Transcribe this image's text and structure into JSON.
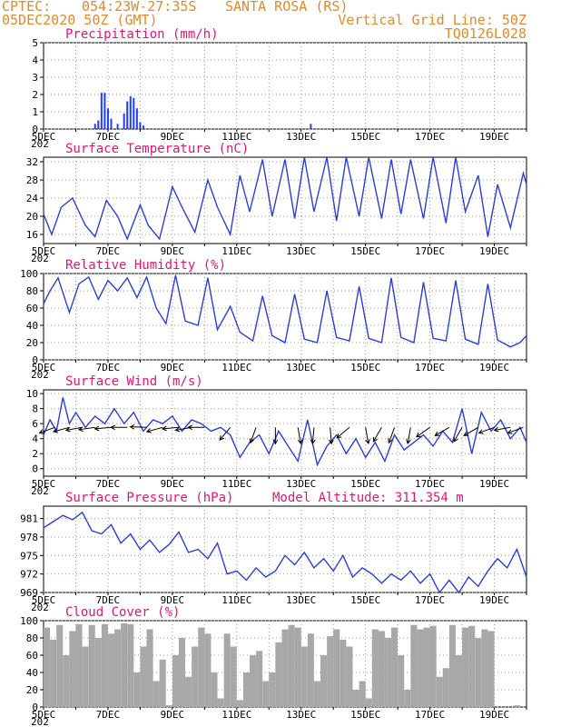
{
  "header": {
    "source": "CPTEC:",
    "coords": "054:23W-27:35S",
    "location": "SANTA ROSA (RS)",
    "init_time": "05DEC2020 50Z (GMT)",
    "grid_note": "Vertical Grid Line: 50Z",
    "run_id": "TQ0126L028"
  },
  "x_tick_labels": [
    "5DEC",
    "7DEC",
    "9DEC",
    "11DEC",
    "13DEC",
    "15DEC",
    "17DEC",
    "19DEC"
  ],
  "x_under_label": "202",
  "colors": {
    "line": "#2b3fd8",
    "bar": "#1f3cff",
    "cloud": "#a8a8a8",
    "title": "#e0157a",
    "header": "#e08a2a"
  },
  "chart_data": [
    {
      "type": "bar",
      "title": "Precipitation (mm/h)",
      "ylim": [
        0,
        5
      ],
      "yticks": [
        "0",
        "1",
        "2",
        "3",
        "4",
        "5"
      ],
      "x_range_days": [
        5,
        20
      ],
      "series": [
        {
          "x": [
            6.6,
            6.7,
            6.8,
            6.9,
            7.0,
            7.1,
            7.3,
            7.5,
            7.6,
            7.7,
            7.8,
            7.9,
            8.0,
            8.1,
            13.3
          ],
          "values": [
            0.3,
            0.5,
            2.1,
            2.1,
            1.2,
            0.6,
            0.3,
            0.9,
            1.6,
            1.9,
            1.8,
            1.2,
            0.4,
            0.2,
            0.3
          ]
        }
      ]
    },
    {
      "type": "line",
      "title": "Surface Temperature (nC)",
      "ylim": [
        14,
        33
      ],
      "yticks": [
        "16",
        "20",
        "24",
        "28",
        "32"
      ],
      "series": [
        {
          "x": [
            5.0,
            5.25,
            5.55,
            5.9,
            6.3,
            6.6,
            6.95,
            7.3,
            7.6,
            8.0,
            8.25,
            8.6,
            9.0,
            9.3,
            9.7,
            10.1,
            10.4,
            10.8,
            11.1,
            11.4,
            11.8,
            12.1,
            12.5,
            12.8,
            13.1,
            13.4,
            13.8,
            14.1,
            14.4,
            14.8,
            15.1,
            15.5,
            15.8,
            16.1,
            16.4,
            16.8,
            17.1,
            17.5,
            17.8,
            18.1,
            18.5,
            18.8,
            19.1,
            19.5,
            19.9,
            20.0
          ],
          "values": [
            20.5,
            16.0,
            22.0,
            24.0,
            18.0,
            15.5,
            23.5,
            20.0,
            15.0,
            22.5,
            18.0,
            15.0,
            26.5,
            22.0,
            16.5,
            28.0,
            22.0,
            16.0,
            29.0,
            21.0,
            32.5,
            20.0,
            32.5,
            19.5,
            33.0,
            21.0,
            33.0,
            19.0,
            33.0,
            20.0,
            33.0,
            19.5,
            32.5,
            20.5,
            32.5,
            19.5,
            33.0,
            18.5,
            33.0,
            21.0,
            29.0,
            15.5,
            27.0,
            17.5,
            29.5,
            27.0
          ]
        }
      ]
    },
    {
      "type": "line",
      "title": "Relative Humidity (%)",
      "ylim": [
        0,
        100
      ],
      "yticks": [
        "0",
        "20",
        "40",
        "60",
        "80",
        "100"
      ],
      "series": [
        {
          "x": [
            5.0,
            5.2,
            5.45,
            5.8,
            6.1,
            6.4,
            6.7,
            7.0,
            7.3,
            7.6,
            7.9,
            8.2,
            8.5,
            8.8,
            9.1,
            9.4,
            9.8,
            10.1,
            10.4,
            10.8,
            11.1,
            11.5,
            11.8,
            12.1,
            12.5,
            12.8,
            13.1,
            13.5,
            13.8,
            14.1,
            14.5,
            14.8,
            15.1,
            15.5,
            15.8,
            16.1,
            16.5,
            16.8,
            17.1,
            17.5,
            17.8,
            18.1,
            18.5,
            18.8,
            19.1,
            19.5,
            19.8,
            20.0
          ],
          "values": [
            65,
            80,
            95,
            55,
            88,
            96,
            70,
            92,
            80,
            95,
            72,
            96,
            60,
            42,
            98,
            45,
            40,
            95,
            35,
            62,
            32,
            22,
            74,
            28,
            20,
            76,
            24,
            20,
            80,
            26,
            22,
            85,
            25,
            20,
            95,
            26,
            20,
            90,
            25,
            22,
            92,
            24,
            18,
            88,
            23,
            15,
            20,
            28
          ]
        }
      ]
    },
    {
      "type": "line",
      "title": "Surface Wind (m/s)",
      "ylim": [
        -1,
        10.5
      ],
      "yticks": [
        "0",
        "2",
        "4",
        "6",
        "8",
        "10"
      ],
      "series": [
        {
          "x": [
            5.0,
            5.2,
            5.4,
            5.6,
            5.8,
            6.0,
            6.3,
            6.6,
            6.9,
            7.2,
            7.5,
            7.8,
            8.1,
            8.4,
            8.7,
            9.0,
            9.3,
            9.6,
            9.9,
            10.2,
            10.5,
            10.8,
            11.1,
            11.4,
            11.7,
            12.0,
            12.3,
            12.6,
            12.9,
            13.2,
            13.5,
            13.8,
            14.1,
            14.4,
            14.7,
            15.0,
            15.3,
            15.6,
            15.9,
            16.2,
            16.5,
            16.8,
            17.1,
            17.4,
            17.7,
            18.0,
            18.3,
            18.6,
            18.9,
            19.2,
            19.5,
            19.8,
            20.0
          ],
          "values": [
            4.5,
            6.5,
            5.0,
            9.5,
            6.0,
            7.5,
            5.5,
            7.0,
            6.0,
            8.0,
            6.0,
            7.5,
            5.0,
            6.5,
            6.0,
            7.0,
            5.0,
            6.5,
            6.0,
            5.0,
            5.5,
            4.5,
            1.5,
            3.5,
            4.5,
            2.0,
            5.0,
            3.0,
            1.0,
            6.5,
            0.5,
            3.0,
            4.5,
            2.0,
            4.0,
            1.5,
            3.5,
            1.0,
            4.5,
            2.5,
            3.5,
            4.5,
            3.0,
            5.0,
            3.5,
            8.0,
            2.0,
            7.5,
            5.0,
            6.5,
            4.0,
            5.5,
            3.5
          ]
        }
      ],
      "wind_arrows": [
        {
          "day": 5.35,
          "angle": 200
        },
        {
          "day": 5.8,
          "angle": 195
        },
        {
          "day": 6.2,
          "angle": 190
        },
        {
          "day": 6.6,
          "angle": 188
        },
        {
          "day": 7.1,
          "angle": 185
        },
        {
          "day": 7.6,
          "angle": 180
        },
        {
          "day": 8.2,
          "angle": 178
        },
        {
          "day": 8.7,
          "angle": 195
        },
        {
          "day": 9.2,
          "angle": 185
        },
        {
          "day": 9.6,
          "angle": 190
        },
        {
          "day": 10.0,
          "angle": 180
        },
        {
          "day": 10.8,
          "angle": 230
        },
        {
          "day": 11.6,
          "angle": 250
        },
        {
          "day": 12.2,
          "angle": 270
        },
        {
          "day": 12.9,
          "angle": 280
        },
        {
          "day": 13.4,
          "angle": 265
        },
        {
          "day": 13.9,
          "angle": 275
        },
        {
          "day": 14.5,
          "angle": 220
        },
        {
          "day": 15.0,
          "angle": 280
        },
        {
          "day": 15.5,
          "angle": 240
        },
        {
          "day": 15.9,
          "angle": 250
        },
        {
          "day": 16.4,
          "angle": 260
        },
        {
          "day": 17.0,
          "angle": 215
        },
        {
          "day": 17.6,
          "angle": 210
        },
        {
          "day": 18.0,
          "angle": 240
        },
        {
          "day": 18.5,
          "angle": 210
        },
        {
          "day": 19.0,
          "angle": 200
        },
        {
          "day": 19.5,
          "angle": 190
        },
        {
          "day": 19.9,
          "angle": 200
        }
      ]
    },
    {
      "type": "line",
      "title": "Surface Pressure (hPa)",
      "annotation": "Model Altitude: 311.354 m",
      "ylim": [
        969,
        983
      ],
      "yticks": [
        "969",
        "972",
        "975",
        "978",
        "981"
      ],
      "series": [
        {
          "x": [
            5.0,
            5.3,
            5.6,
            5.9,
            6.2,
            6.5,
            6.8,
            7.1,
            7.4,
            7.7,
            8.0,
            8.3,
            8.6,
            8.9,
            9.2,
            9.5,
            9.8,
            10.1,
            10.4,
            10.7,
            11.0,
            11.3,
            11.6,
            11.9,
            12.2,
            12.5,
            12.8,
            13.1,
            13.4,
            13.7,
            14.0,
            14.3,
            14.6,
            14.9,
            15.2,
            15.5,
            15.8,
            16.1,
            16.4,
            16.7,
            17.0,
            17.3,
            17.6,
            17.9,
            18.2,
            18.5,
            18.8,
            19.1,
            19.4,
            19.7,
            20.0
          ],
          "values": [
            979.5,
            980.5,
            981.5,
            980.8,
            982.0,
            979.0,
            978.5,
            980.0,
            977.0,
            978.5,
            976.0,
            977.5,
            975.5,
            976.8,
            978.8,
            975.5,
            976.0,
            974.5,
            977.0,
            972.0,
            972.5,
            971.0,
            973.0,
            971.5,
            972.5,
            975.0,
            973.5,
            975.5,
            973.0,
            974.5,
            972.5,
            975.0,
            971.5,
            973.0,
            972.0,
            970.5,
            972.0,
            971.0,
            972.5,
            970.5,
            972.0,
            968.5,
            971.0,
            969.0,
            971.5,
            970.0,
            972.5,
            974.5,
            973.0,
            976.0,
            971.5
          ]
        }
      ]
    },
    {
      "type": "bar",
      "title": "Cloud Cover (%)",
      "ylim": [
        0,
        100
      ],
      "yticks": [
        "0",
        "20",
        "40",
        "60",
        "80",
        "100"
      ],
      "series": [
        {
          "x": [
            5.1,
            5.3,
            5.5,
            5.7,
            5.9,
            6.1,
            6.3,
            6.5,
            6.7,
            6.9,
            7.1,
            7.3,
            7.5,
            7.7,
            7.9,
            8.1,
            8.3,
            8.5,
            8.7,
            8.9,
            9.1,
            9.3,
            9.5,
            9.7,
            9.9,
            10.1,
            10.3,
            10.5,
            10.7,
            10.9,
            11.1,
            11.3,
            11.5,
            11.7,
            11.9,
            12.1,
            12.3,
            12.5,
            12.7,
            12.9,
            13.1,
            13.3,
            13.5,
            13.7,
            13.9,
            14.1,
            14.3,
            14.5,
            14.7,
            14.9,
            15.1,
            15.3,
            15.5,
            15.7,
            15.9,
            16.1,
            16.3,
            16.5,
            16.7,
            16.9,
            17.1,
            17.3,
            17.5,
            17.7,
            17.9,
            18.1,
            18.3,
            18.5,
            18.7,
            18.9,
            19.1,
            19.3,
            19.5,
            19.7,
            19.9
          ],
          "values": [
            92,
            78,
            95,
            60,
            88,
            96,
            70,
            95,
            80,
            96,
            85,
            90,
            97,
            96,
            40,
            70,
            90,
            30,
            55,
            2,
            60,
            80,
            35,
            70,
            92,
            85,
            40,
            10,
            85,
            70,
            8,
            40,
            60,
            65,
            30,
            40,
            75,
            90,
            95,
            92,
            70,
            85,
            30,
            60,
            82,
            90,
            78,
            70,
            20,
            30,
            10,
            90,
            88,
            80,
            92,
            60,
            20,
            95,
            90,
            92,
            94,
            35,
            45,
            95,
            60,
            92,
            94,
            80,
            90,
            88,
            0,
            0,
            0,
            2,
            0
          ]
        }
      ]
    }
  ]
}
